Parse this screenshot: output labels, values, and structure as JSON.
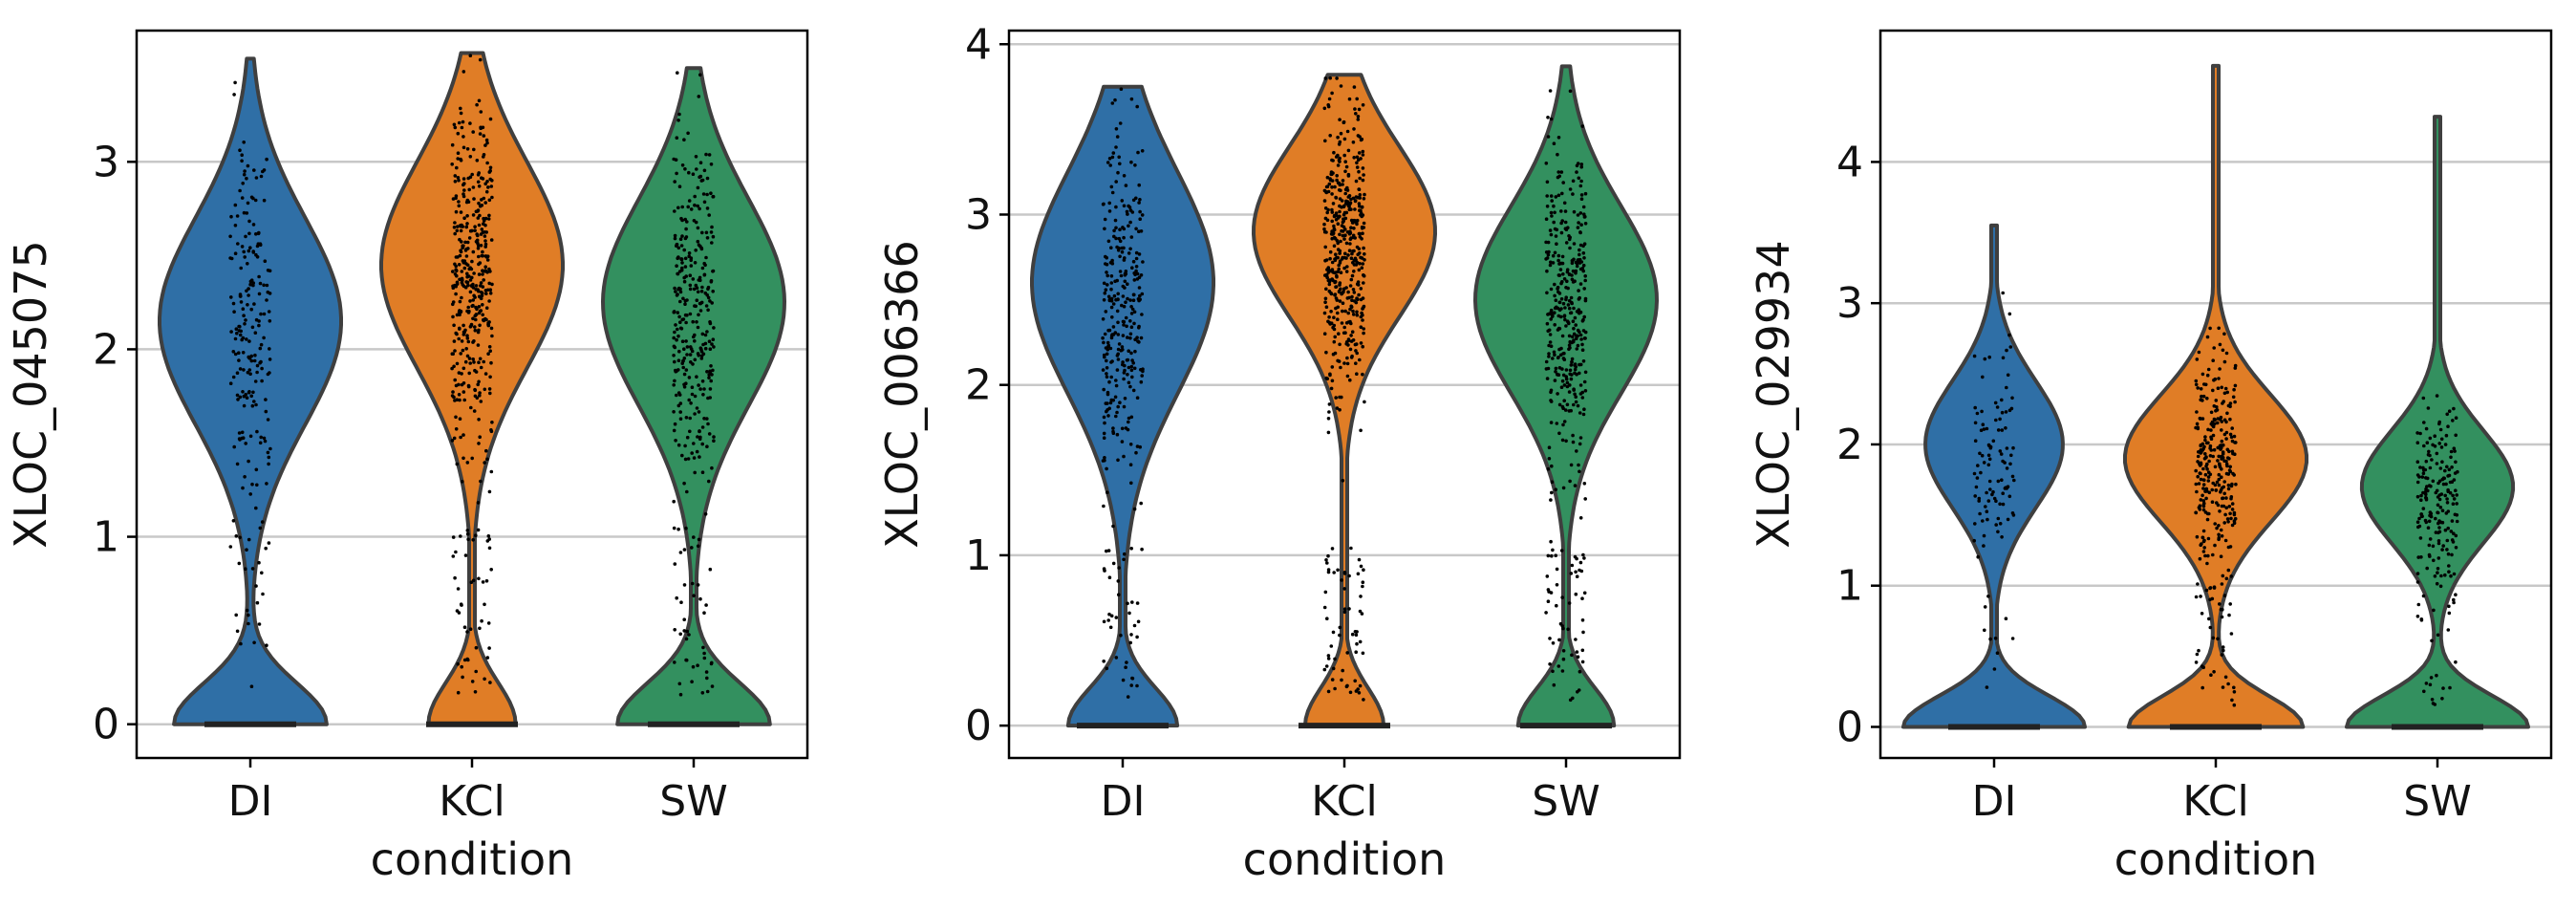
{
  "chart_data": [
    {
      "type": "violin",
      "xlabel": "condition",
      "ylabel": "XLOC_045075",
      "categories": [
        "DI",
        "KCl",
        "SW"
      ],
      "colors": [
        "#2f6fa6",
        "#e07d26",
        "#33905f"
      ],
      "ylim": [
        -0.18,
        3.7
      ],
      "yticks": [
        0,
        1,
        2,
        3
      ],
      "grid": true,
      "legend": "none",
      "violins": [
        {
          "category": "DI",
          "max": 3.55,
          "zero_fraction": 0.35,
          "mode": 2.15,
          "median": 2.1,
          "spread": 0.55,
          "points": 220
        },
        {
          "category": "KCl",
          "max": 3.58,
          "zero_fraction": 0.2,
          "mode": 2.45,
          "median": 2.4,
          "spread": 0.55,
          "points": 460
        },
        {
          "category": "SW",
          "max": 3.5,
          "zero_fraction": 0.35,
          "mode": 2.25,
          "median": 2.2,
          "spread": 0.55,
          "points": 360
        }
      ]
    },
    {
      "type": "violin",
      "xlabel": "condition",
      "ylabel": "XLOC_006366",
      "categories": [
        "DI",
        "KCl",
        "SW"
      ],
      "colors": [
        "#2f6fa6",
        "#e07d26",
        "#33905f"
      ],
      "ylim": [
        -0.19,
        4.08
      ],
      "yticks": [
        0,
        1,
        2,
        3,
        4
      ],
      "grid": true,
      "legend": "none",
      "violins": [
        {
          "category": "DI",
          "max": 3.75,
          "zero_fraction": 0.25,
          "mode": 2.6,
          "median": 2.5,
          "spread": 0.65,
          "points": 340
        },
        {
          "category": "KCl",
          "max": 3.82,
          "zero_fraction": 0.18,
          "mode": 2.9,
          "median": 2.8,
          "spread": 0.5,
          "points": 520
        },
        {
          "category": "SW",
          "max": 3.87,
          "zero_fraction": 0.22,
          "mode": 2.5,
          "median": 2.45,
          "spread": 0.55,
          "points": 420
        }
      ]
    },
    {
      "type": "violin",
      "xlabel": "condition",
      "ylabel": "XLOC_029934",
      "categories": [
        "DI",
        "KCl",
        "SW"
      ],
      "colors": [
        "#2f6fa6",
        "#e07d26",
        "#33905f"
      ],
      "ylim": [
        -0.22,
        4.93
      ],
      "yticks": [
        0,
        1,
        2,
        3,
        4
      ],
      "grid": true,
      "legend": "none",
      "violins": [
        {
          "category": "DI",
          "max": 3.55,
          "zero_fraction": 0.55,
          "mode": 2.0,
          "median": 1.9,
          "spread": 0.45,
          "points": 110
        },
        {
          "category": "KCl",
          "max": 4.68,
          "zero_fraction": 0.4,
          "mode": 1.9,
          "median": 1.85,
          "spread": 0.45,
          "points": 330
        },
        {
          "category": "SW",
          "max": 4.32,
          "zero_fraction": 0.5,
          "mode": 1.7,
          "median": 1.65,
          "spread": 0.4,
          "points": 210
        }
      ]
    }
  ]
}
